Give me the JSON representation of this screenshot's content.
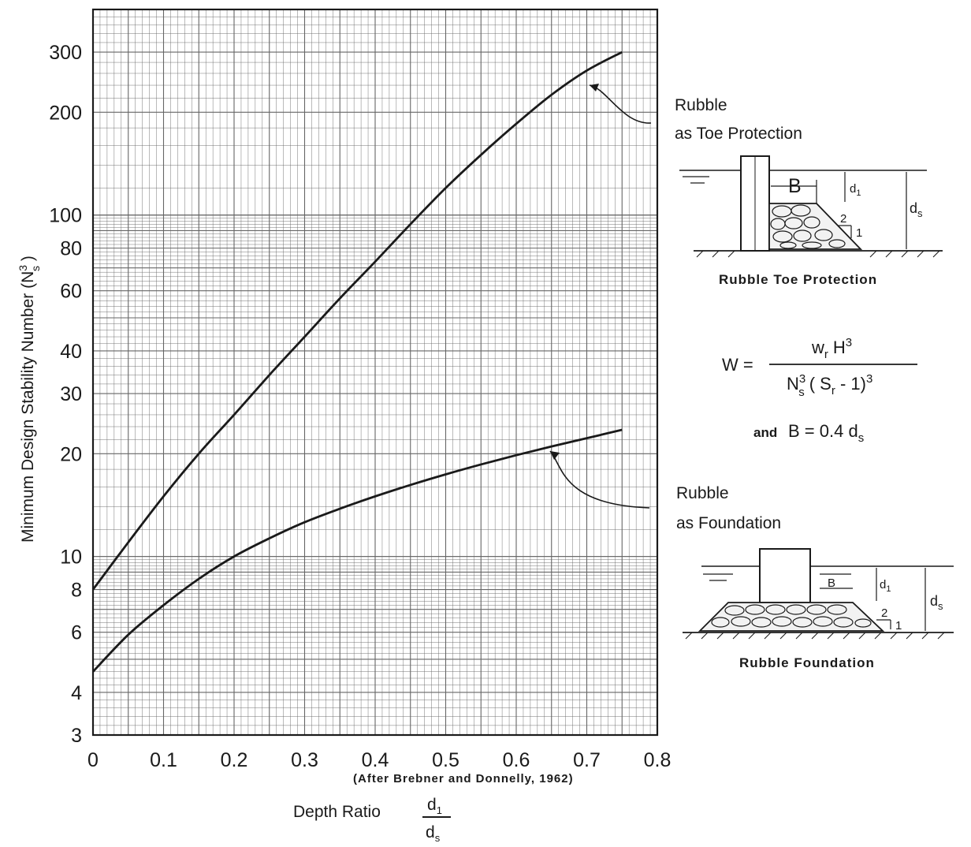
{
  "chart_data": {
    "type": "line",
    "xlabel": "Depth Ratio",
    "xlabel_fraction": {
      "num": "d",
      "num_sub": "1",
      "den": "d",
      "den_sub": "s"
    },
    "ylabel": "Minimum Design Stability Number",
    "ylabel_symbol": {
      "base": "N",
      "sup": "3",
      "sub": "s"
    },
    "x_ticks": [
      "0",
      "0.1",
      "0.2",
      "0.3",
      "0.4",
      "0.5",
      "0.6",
      "0.7",
      "0.8"
    ],
    "y_ticks": [
      "3",
      "4",
      "6",
      "8",
      "10",
      "20",
      "30",
      "40",
      "60",
      "80",
      "100",
      "200",
      "300"
    ],
    "xlim": [
      0,
      0.8
    ],
    "ylim": [
      3,
      400
    ],
    "y_scale": "log",
    "grid": true,
    "series": [
      {
        "name": "Rubble as Toe Protection",
        "label_lines": [
          "Rubble",
          "as Toe Protection"
        ],
        "x": [
          0,
          0.05,
          0.1,
          0.15,
          0.2,
          0.25,
          0.3,
          0.35,
          0.4,
          0.45,
          0.5,
          0.55,
          0.6,
          0.65,
          0.7,
          0.75
        ],
        "y": [
          8,
          11,
          15,
          20,
          26,
          34,
          44,
          57,
          73,
          94,
          120,
          150,
          185,
          225,
          265,
          300
        ]
      },
      {
        "name": "Rubble as Foundation",
        "label_lines": [
          "Rubble",
          "as Foundation"
        ],
        "x": [
          0,
          0.05,
          0.1,
          0.15,
          0.2,
          0.25,
          0.3,
          0.35,
          0.4,
          0.45,
          0.5,
          0.55,
          0.6,
          0.65,
          0.7,
          0.75
        ],
        "y": [
          4.6,
          5.9,
          7.2,
          8.6,
          10,
          11.3,
          12.6,
          13.8,
          15,
          16.2,
          17.4,
          18.6,
          19.8,
          21,
          22.2,
          23.5
        ]
      }
    ],
    "source_note": "(After Brebner and Donnelly, 1962)"
  },
  "insets": {
    "toe": {
      "caption": "Rubble Toe Protection",
      "label_B": "B",
      "label_d1": {
        "base": "d",
        "sub": "1"
      },
      "label_ds": {
        "base": "d",
        "sub": "s"
      },
      "slope_run": "2",
      "slope_rise": "1"
    },
    "foundation": {
      "caption": "Rubble Foundation",
      "label_B": "B",
      "label_d1": {
        "base": "d",
        "sub": "1"
      },
      "label_ds": {
        "base": "d",
        "sub": "s"
      },
      "slope_run": "2",
      "slope_rise": "1"
    }
  },
  "formula": {
    "lhs": "W =",
    "numerator": {
      "w": "w",
      "w_sub": "r",
      "H": "H",
      "H_sup": "3"
    },
    "denominator": {
      "N": "N",
      "N_sup": "3",
      "N_sub": "s",
      "paren_open": "( S",
      "S_sub": "r",
      "minus_one": " - 1)",
      "pow": "3"
    },
    "and_text": "and",
    "b_eq": "B = 0.4 d",
    "b_eq_sub": "s"
  },
  "colors": {
    "ink": "#1a1a1a",
    "grid": "#666666",
    "paper": "#ffffff"
  }
}
